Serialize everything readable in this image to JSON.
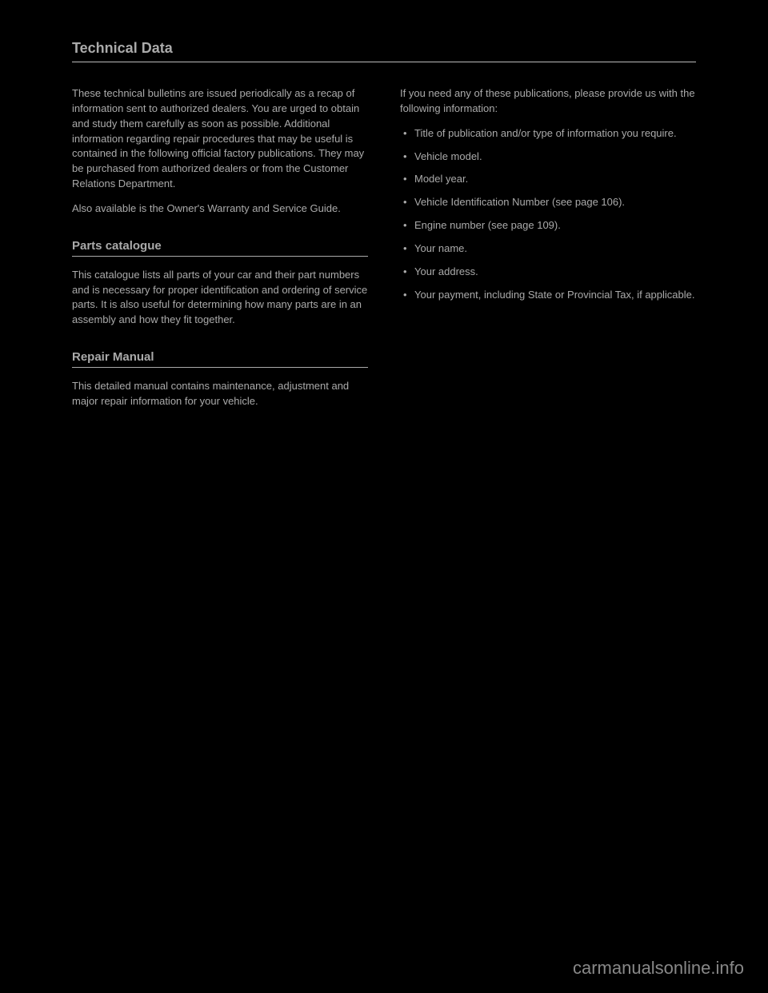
{
  "title": "Technical Data",
  "left_column": {
    "intro_paragraphs": [
      "These technical bulletins are issued periodically as a recap of information sent to authorized dealers. You are urged to obtain and study them carefully as soon as possible. Additional information regarding repair procedures that may be useful is contained in the following official factory publications. They may be purchased from authorized dealers or from the Customer Relations Department.",
      "Also available is the Owner's Warranty and Service Guide."
    ],
    "section_a": {
      "heading": "Parts catalogue",
      "para": "This catalogue lists all parts of your car and their part numbers and is necessary for proper identification and ordering of service parts. It is also useful for determining how many parts are in an assembly and how they fit together."
    },
    "section_b": {
      "heading": "Repair Manual",
      "para": "This detailed manual contains maintenance, adjustment and major repair information for your vehicle."
    }
  },
  "right_column": {
    "lead": "If you need any of these publications, please provide us with the following information:",
    "items": [
      "Title of publication and/or type of information you require.",
      "Vehicle model.",
      "Model year.",
      "Vehicle Identification Number (see page 106).",
      "Engine number (see page 109).",
      "Your name.",
      "Your address.",
      "Your payment, including State or Provincial Tax, if applicable."
    ]
  },
  "watermark": "carmanualsonline.info"
}
